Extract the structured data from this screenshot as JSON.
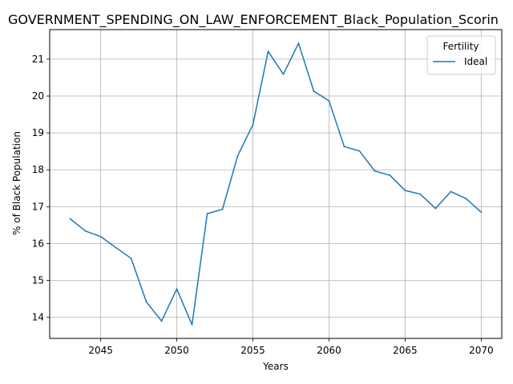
{
  "chart_data": {
    "type": "line",
    "title": "GOVERNMENT_SPENDING_ON_LAW_ENFORCEMENT_Black_Population_Scorin",
    "xlabel": "Years",
    "ylabel": "% of Black Population",
    "xlim": [
      2041.65,
      2071.35
    ],
    "ylim": [
      13.43,
      21.8
    ],
    "xticks": [
      2045,
      2050,
      2055,
      2060,
      2065,
      2070
    ],
    "yticks": [
      14,
      15,
      16,
      17,
      18,
      19,
      20,
      21
    ],
    "grid": true,
    "legend": {
      "title": "Fertility",
      "placement": "top-right"
    },
    "series": [
      {
        "name": "Ideal",
        "color": "#1f77b4",
        "x": [
          2043,
          2044,
          2045,
          2046,
          2047,
          2048,
          2049,
          2050,
          2051,
          2052,
          2053,
          2054,
          2055,
          2056,
          2057,
          2058,
          2059,
          2060,
          2061,
          2062,
          2063,
          2064,
          2065,
          2066,
          2067,
          2068,
          2069,
          2070
        ],
        "values": [
          16.67,
          16.34,
          16.19,
          15.89,
          15.6,
          14.42,
          13.9,
          14.77,
          13.8,
          16.81,
          16.93,
          18.38,
          19.22,
          21.21,
          20.59,
          21.43,
          20.13,
          19.87,
          18.63,
          18.51,
          17.97,
          17.85,
          17.44,
          17.34,
          16.95,
          17.41,
          17.22,
          16.85
        ]
      }
    ]
  }
}
